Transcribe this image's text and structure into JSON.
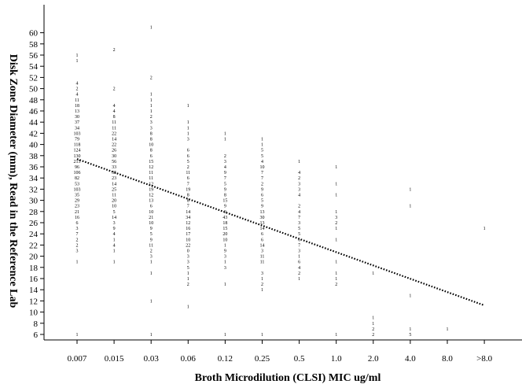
{
  "chart_data": {
    "type": "scatter",
    "xlabel": "Broth Microdilution (CLSI) MIC ug/ml",
    "ylabel": "Disk Zone Diameter (mm), Read in the Reference Lab",
    "categories": [
      "0.007",
      "0.015",
      "0.03",
      "0.06",
      "0.12",
      "0.25",
      "0.5",
      "1.0",
      "2.0",
      "4.0",
      "8.0",
      ">8.0"
    ],
    "y_ticks": [
      6,
      8,
      10,
      12,
      14,
      16,
      18,
      20,
      22,
      24,
      26,
      28,
      30,
      32,
      34,
      36,
      38,
      40,
      42,
      44,
      46,
      48,
      50,
      52,
      54,
      56,
      58,
      60
    ],
    "ylim": [
      5,
      62
    ],
    "grid": false,
    "counts": [
      {
        "x": "0.007",
        "y": 56,
        "n": "1"
      },
      {
        "x": "0.007",
        "y": 55,
        "n": "1"
      },
      {
        "x": "0.007",
        "y": 51,
        "n": "4"
      },
      {
        "x": "0.007",
        "y": 50,
        "n": "2"
      },
      {
        "x": "0.007",
        "y": 49,
        "n": "4"
      },
      {
        "x": "0.007",
        "y": 48,
        "n": "11"
      },
      {
        "x": "0.007",
        "y": 47,
        "n": "18"
      },
      {
        "x": "0.007",
        "y": 46,
        "n": "13"
      },
      {
        "x": "0.007",
        "y": 45,
        "n": "30"
      },
      {
        "x": "0.007",
        "y": 44,
        "n": "37"
      },
      {
        "x": "0.007",
        "y": 43,
        "n": "34"
      },
      {
        "x": "0.007",
        "y": 42,
        "n": "103"
      },
      {
        "x": "0.007",
        "y": 41,
        "n": "79"
      },
      {
        "x": "0.007",
        "y": 40,
        "n": "118"
      },
      {
        "x": "0.007",
        "y": 39,
        "n": "124"
      },
      {
        "x": "0.007",
        "y": 38,
        "n": "130"
      },
      {
        "x": "0.007",
        "y": 37,
        "n": "215"
      },
      {
        "x": "0.007",
        "y": 36,
        "n": "96"
      },
      {
        "x": "0.007",
        "y": 35,
        "n": "106"
      },
      {
        "x": "0.007",
        "y": 34,
        "n": "82"
      },
      {
        "x": "0.007",
        "y": 33,
        "n": "53"
      },
      {
        "x": "0.007",
        "y": 32,
        "n": "103"
      },
      {
        "x": "0.007",
        "y": 31,
        "n": "35"
      },
      {
        "x": "0.007",
        "y": 30,
        "n": "29"
      },
      {
        "x": "0.007",
        "y": 29,
        "n": "23"
      },
      {
        "x": "0.007",
        "y": 28,
        "n": "21"
      },
      {
        "x": "0.007",
        "y": 27,
        "n": "16"
      },
      {
        "x": "0.007",
        "y": 26,
        "n": "6"
      },
      {
        "x": "0.007",
        "y": 25,
        "n": "3"
      },
      {
        "x": "0.007",
        "y": 24,
        "n": "7"
      },
      {
        "x": "0.007",
        "y": 23,
        "n": "2"
      },
      {
        "x": "0.007",
        "y": 22,
        "n": "2"
      },
      {
        "x": "0.007",
        "y": 21,
        "n": "3"
      },
      {
        "x": "0.007",
        "y": 19,
        "n": "1"
      },
      {
        "x": "0.007",
        "y": 6,
        "n": "1"
      },
      {
        "x": "0.015",
        "y": 57,
        "n": "2"
      },
      {
        "x": "0.015",
        "y": 50,
        "n": "2"
      },
      {
        "x": "0.015",
        "y": 47,
        "n": "4"
      },
      {
        "x": "0.015",
        "y": 46,
        "n": "4"
      },
      {
        "x": "0.015",
        "y": 45,
        "n": "8"
      },
      {
        "x": "0.015",
        "y": 44,
        "n": "11"
      },
      {
        "x": "0.015",
        "y": 43,
        "n": "11"
      },
      {
        "x": "0.015",
        "y": 42,
        "n": "22"
      },
      {
        "x": "0.015",
        "y": 41,
        "n": "14"
      },
      {
        "x": "0.015",
        "y": 40,
        "n": "22"
      },
      {
        "x": "0.015",
        "y": 39,
        "n": "26"
      },
      {
        "x": "0.015",
        "y": 38,
        "n": "30"
      },
      {
        "x": "0.015",
        "y": 37,
        "n": "56"
      },
      {
        "x": "0.015",
        "y": 36,
        "n": "33"
      },
      {
        "x": "0.015",
        "y": 35,
        "n": "35"
      },
      {
        "x": "0.015",
        "y": 34,
        "n": "23"
      },
      {
        "x": "0.015",
        "y": 33,
        "n": "14"
      },
      {
        "x": "0.015",
        "y": 32,
        "n": "25"
      },
      {
        "x": "0.015",
        "y": 31,
        "n": "11"
      },
      {
        "x": "0.015",
        "y": 30,
        "n": "20"
      },
      {
        "x": "0.015",
        "y": 29,
        "n": "10"
      },
      {
        "x": "0.015",
        "y": 28,
        "n": "5"
      },
      {
        "x": "0.015",
        "y": 27,
        "n": "14"
      },
      {
        "x": "0.015",
        "y": 26,
        "n": "3"
      },
      {
        "x": "0.015",
        "y": 25,
        "n": "9"
      },
      {
        "x": "0.015",
        "y": 24,
        "n": "4"
      },
      {
        "x": "0.015",
        "y": 23,
        "n": "1"
      },
      {
        "x": "0.015",
        "y": 22,
        "n": "4"
      },
      {
        "x": "0.015",
        "y": 21,
        "n": "1"
      },
      {
        "x": "0.015",
        "y": 19,
        "n": "1"
      },
      {
        "x": "0.03",
        "y": 61,
        "n": "1"
      },
      {
        "x": "0.03",
        "y": 52,
        "n": "2"
      },
      {
        "x": "0.03",
        "y": 49,
        "n": "1"
      },
      {
        "x": "0.03",
        "y": 48,
        "n": "1"
      },
      {
        "x": "0.03",
        "y": 47,
        "n": "1"
      },
      {
        "x": "0.03",
        "y": 46,
        "n": "1"
      },
      {
        "x": "0.03",
        "y": 45,
        "n": "2"
      },
      {
        "x": "0.03",
        "y": 44,
        "n": "3"
      },
      {
        "x": "0.03",
        "y": 43,
        "n": "3"
      },
      {
        "x": "0.03",
        "y": 42,
        "n": "8"
      },
      {
        "x": "0.03",
        "y": 41,
        "n": "8"
      },
      {
        "x": "0.03",
        "y": 40,
        "n": "10"
      },
      {
        "x": "0.03",
        "y": 39,
        "n": "8"
      },
      {
        "x": "0.03",
        "y": 38,
        "n": "6"
      },
      {
        "x": "0.03",
        "y": 37,
        "n": "15"
      },
      {
        "x": "0.03",
        "y": 36,
        "n": "12"
      },
      {
        "x": "0.03",
        "y": 35,
        "n": "11"
      },
      {
        "x": "0.03",
        "y": 34,
        "n": "11"
      },
      {
        "x": "0.03",
        "y": 33,
        "n": "12"
      },
      {
        "x": "0.03",
        "y": 32,
        "n": "19"
      },
      {
        "x": "0.03",
        "y": 31,
        "n": "12"
      },
      {
        "x": "0.03",
        "y": 30,
        "n": "13"
      },
      {
        "x": "0.03",
        "y": 29,
        "n": "6"
      },
      {
        "x": "0.03",
        "y": 28,
        "n": "10"
      },
      {
        "x": "0.03",
        "y": 27,
        "n": "21"
      },
      {
        "x": "0.03",
        "y": 26,
        "n": "10"
      },
      {
        "x": "0.03",
        "y": 25,
        "n": "9"
      },
      {
        "x": "0.03",
        "y": 24,
        "n": "5"
      },
      {
        "x": "0.03",
        "y": 23,
        "n": "9"
      },
      {
        "x": "0.03",
        "y": 22,
        "n": "11"
      },
      {
        "x": "0.03",
        "y": 21,
        "n": "2"
      },
      {
        "x": "0.03",
        "y": 20,
        "n": "3"
      },
      {
        "x": "0.03",
        "y": 19,
        "n": "1"
      },
      {
        "x": "0.03",
        "y": 17,
        "n": "1"
      },
      {
        "x": "0.03",
        "y": 12,
        "n": "1"
      },
      {
        "x": "0.03",
        "y": 6,
        "n": "1"
      },
      {
        "x": "0.06",
        "y": 47,
        "n": "1"
      },
      {
        "x": "0.06",
        "y": 44,
        "n": "1"
      },
      {
        "x": "0.06",
        "y": 43,
        "n": "1"
      },
      {
        "x": "0.06",
        "y": 42,
        "n": "1"
      },
      {
        "x": "0.06",
        "y": 41,
        "n": "3"
      },
      {
        "x": "0.06",
        "y": 39,
        "n": "6"
      },
      {
        "x": "0.06",
        "y": 38,
        "n": "6"
      },
      {
        "x": "0.06",
        "y": 37,
        "n": "5"
      },
      {
        "x": "0.06",
        "y": 36,
        "n": "2"
      },
      {
        "x": "0.06",
        "y": 35,
        "n": "11"
      },
      {
        "x": "0.06",
        "y": 34,
        "n": "6"
      },
      {
        "x": "0.06",
        "y": 33,
        "n": "7"
      },
      {
        "x": "0.06",
        "y": 32,
        "n": "19"
      },
      {
        "x": "0.06",
        "y": 31,
        "n": "8"
      },
      {
        "x": "0.06",
        "y": 30,
        "n": "8"
      },
      {
        "x": "0.06",
        "y": 29,
        "n": "7"
      },
      {
        "x": "0.06",
        "y": 28,
        "n": "14"
      },
      {
        "x": "0.06",
        "y": 27,
        "n": "34"
      },
      {
        "x": "0.06",
        "y": 26,
        "n": "12"
      },
      {
        "x": "0.06",
        "y": 25,
        "n": "16"
      },
      {
        "x": "0.06",
        "y": 24,
        "n": "17"
      },
      {
        "x": "0.06",
        "y": 23,
        "n": "10"
      },
      {
        "x": "0.06",
        "y": 22,
        "n": "22"
      },
      {
        "x": "0.06",
        "y": 21,
        "n": "0"
      },
      {
        "x": "0.06",
        "y": 20,
        "n": "3"
      },
      {
        "x": "0.06",
        "y": 19,
        "n": "3"
      },
      {
        "x": "0.06",
        "y": 18,
        "n": "5"
      },
      {
        "x": "0.06",
        "y": 17,
        "n": "1"
      },
      {
        "x": "0.06",
        "y": 16,
        "n": "1"
      },
      {
        "x": "0.06",
        "y": 15,
        "n": "2"
      },
      {
        "x": "0.06",
        "y": 11,
        "n": "1"
      },
      {
        "x": "0.12",
        "y": 42,
        "n": "1"
      },
      {
        "x": "0.12",
        "y": 41,
        "n": "1"
      },
      {
        "x": "0.12",
        "y": 38,
        "n": "2"
      },
      {
        "x": "0.12",
        "y": 37,
        "n": "3"
      },
      {
        "x": "0.12",
        "y": 36,
        "n": "4"
      },
      {
        "x": "0.12",
        "y": 35,
        "n": "9"
      },
      {
        "x": "0.12",
        "y": 34,
        "n": "7"
      },
      {
        "x": "0.12",
        "y": 33,
        "n": "5"
      },
      {
        "x": "0.12",
        "y": 32,
        "n": "9"
      },
      {
        "x": "0.12",
        "y": 31,
        "n": "8"
      },
      {
        "x": "0.12",
        "y": 30,
        "n": "15"
      },
      {
        "x": "0.12",
        "y": 29,
        "n": "9"
      },
      {
        "x": "0.12",
        "y": 28,
        "n": "9"
      },
      {
        "x": "0.12",
        "y": 27,
        "n": "43"
      },
      {
        "x": "0.12",
        "y": 26,
        "n": "18"
      },
      {
        "x": "0.12",
        "y": 25,
        "n": "15"
      },
      {
        "x": "0.12",
        "y": 24,
        "n": "20"
      },
      {
        "x": "0.12",
        "y": 23,
        "n": "10"
      },
      {
        "x": "0.12",
        "y": 22,
        "n": "1"
      },
      {
        "x": "0.12",
        "y": 21,
        "n": "9"
      },
      {
        "x": "0.12",
        "y": 20,
        "n": "3"
      },
      {
        "x": "0.12",
        "y": 19,
        "n": "1"
      },
      {
        "x": "0.12",
        "y": 18,
        "n": "3"
      },
      {
        "x": "0.12",
        "y": 15,
        "n": "1"
      },
      {
        "x": "0.12",
        "y": 6,
        "n": "1"
      },
      {
        "x": "0.25",
        "y": 41,
        "n": "1"
      },
      {
        "x": "0.25",
        "y": 40,
        "n": "1"
      },
      {
        "x": "0.25",
        "y": 39,
        "n": "5"
      },
      {
        "x": "0.25",
        "y": 38,
        "n": "5"
      },
      {
        "x": "0.25",
        "y": 37,
        "n": "4"
      },
      {
        "x": "0.25",
        "y": 36,
        "n": "10"
      },
      {
        "x": "0.25",
        "y": 35,
        "n": "7"
      },
      {
        "x": "0.25",
        "y": 34,
        "n": "7"
      },
      {
        "x": "0.25",
        "y": 33,
        "n": "2"
      },
      {
        "x": "0.25",
        "y": 32,
        "n": "9"
      },
      {
        "x": "0.25",
        "y": 31,
        "n": "6"
      },
      {
        "x": "0.25",
        "y": 30,
        "n": "5"
      },
      {
        "x": "0.25",
        "y": 29,
        "n": "9"
      },
      {
        "x": "0.25",
        "y": 28,
        "n": "13"
      },
      {
        "x": "0.25",
        "y": 27,
        "n": "30"
      },
      {
        "x": "0.25",
        "y": 26,
        "n": "13"
      },
      {
        "x": "0.25",
        "y": 25,
        "n": "14"
      },
      {
        "x": "0.25",
        "y": 24,
        "n": "6"
      },
      {
        "x": "0.25",
        "y": 23,
        "n": "6"
      },
      {
        "x": "0.25",
        "y": 22,
        "n": "14"
      },
      {
        "x": "0.25",
        "y": 21,
        "n": "3"
      },
      {
        "x": "0.25",
        "y": 20,
        "n": "11"
      },
      {
        "x": "0.25",
        "y": 19,
        "n": "11"
      },
      {
        "x": "0.25",
        "y": 17,
        "n": "3"
      },
      {
        "x": "0.25",
        "y": 16,
        "n": "1"
      },
      {
        "x": "0.25",
        "y": 15,
        "n": "2"
      },
      {
        "x": "0.25",
        "y": 14,
        "n": "1"
      },
      {
        "x": "0.25",
        "y": 6,
        "n": "1"
      },
      {
        "x": "0.5",
        "y": 37,
        "n": "1"
      },
      {
        "x": "0.5",
        "y": 35,
        "n": "4"
      },
      {
        "x": "0.5",
        "y": 34,
        "n": "2"
      },
      {
        "x": "0.5",
        "y": 33,
        "n": "3"
      },
      {
        "x": "0.5",
        "y": 32,
        "n": "3"
      },
      {
        "x": "0.5",
        "y": 31,
        "n": "4"
      },
      {
        "x": "0.5",
        "y": 29,
        "n": "2"
      },
      {
        "x": "0.5",
        "y": 28,
        "n": "4"
      },
      {
        "x": "0.5",
        "y": 27,
        "n": "7"
      },
      {
        "x": "0.5",
        "y": 26,
        "n": "3"
      },
      {
        "x": "0.5",
        "y": 25,
        "n": "5"
      },
      {
        "x": "0.5",
        "y": 24,
        "n": "5"
      },
      {
        "x": "0.5",
        "y": 23,
        "n": "6"
      },
      {
        "x": "0.5",
        "y": 22,
        "n": "7"
      },
      {
        "x": "0.5",
        "y": 21,
        "n": "3"
      },
      {
        "x": "0.5",
        "y": 20,
        "n": "1"
      },
      {
        "x": "0.5",
        "y": 19,
        "n": "6"
      },
      {
        "x": "0.5",
        "y": 18,
        "n": "4"
      },
      {
        "x": "0.5",
        "y": 17,
        "n": "2"
      },
      {
        "x": "0.5",
        "y": 16,
        "n": "1"
      },
      {
        "x": "1.0",
        "y": 36,
        "n": "1"
      },
      {
        "x": "1.0",
        "y": 33,
        "n": "1"
      },
      {
        "x": "1.0",
        "y": 31,
        "n": "1"
      },
      {
        "x": "1.0",
        "y": 28,
        "n": "1"
      },
      {
        "x": "1.0",
        "y": 27,
        "n": "3"
      },
      {
        "x": "1.0",
        "y": 26,
        "n": "2"
      },
      {
        "x": "1.0",
        "y": 25,
        "n": "1"
      },
      {
        "x": "1.0",
        "y": 23,
        "n": "1"
      },
      {
        "x": "1.0",
        "y": 19,
        "n": "1"
      },
      {
        "x": "1.0",
        "y": 17,
        "n": "1"
      },
      {
        "x": "1.0",
        "y": 16,
        "n": "1"
      },
      {
        "x": "1.0",
        "y": 15,
        "n": "2"
      },
      {
        "x": "1.0",
        "y": 6,
        "n": "1"
      },
      {
        "x": "2.0",
        "y": 17,
        "n": "1"
      },
      {
        "x": "2.0",
        "y": 9,
        "n": "1"
      },
      {
        "x": "2.0",
        "y": 8,
        "n": "1"
      },
      {
        "x": "2.0",
        "y": 7,
        "n": "2"
      },
      {
        "x": "2.0",
        "y": 6,
        "n": "2"
      },
      {
        "x": "4.0",
        "y": 32,
        "n": "1"
      },
      {
        "x": "4.0",
        "y": 29,
        "n": "1"
      },
      {
        "x": "4.0",
        "y": 13,
        "n": "1"
      },
      {
        "x": "4.0",
        "y": 7,
        "n": "1"
      },
      {
        "x": "4.0",
        "y": 6,
        "n": "5"
      },
      {
        "x": "8.0",
        "y": 7,
        "n": "1"
      },
      {
        "x": ">8.0",
        "y": 25,
        "n": "1"
      }
    ],
    "regression": {
      "style": "dotted",
      "from": {
        "x": "0.007",
        "y": 37.4
      },
      "to": {
        "x": ">8.0",
        "y": 11.2
      }
    }
  }
}
